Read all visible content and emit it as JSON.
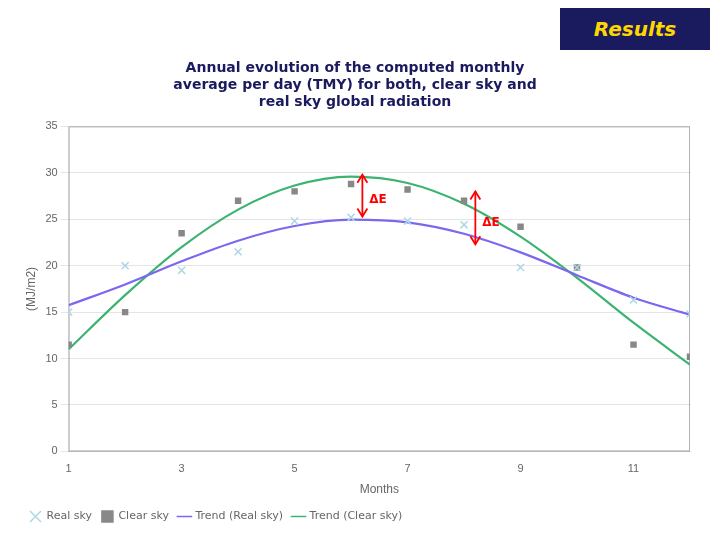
{
  "chart_data": {
    "type": "line",
    "title": "Annual evolution of the computed monthly\naverage per day (TMY) for both, clear sky and\nreal sky global radiation",
    "banner": "Results",
    "xlabel": "Months",
    "ylabel": "(MJ/m2)",
    "x": [
      1,
      2,
      3,
      4,
      5,
      6,
      7,
      8,
      9,
      10,
      11,
      12
    ],
    "series": [
      {
        "name": "Real sky",
        "type": "scatter",
        "marker": "x",
        "color": "#ADD8E6",
        "values": [
          15.0,
          20.0,
          19.5,
          21.5,
          24.8,
          25.2,
          24.8,
          24.4,
          19.8,
          19.8,
          16.3,
          14.8
        ]
      },
      {
        "name": "Clear sky",
        "type": "scatter",
        "marker": "square",
        "color": "#888888",
        "values": [
          11.5,
          15.0,
          23.5,
          27.0,
          28.0,
          28.8,
          28.2,
          27.0,
          24.2,
          19.8,
          11.5,
          10.2
        ]
      },
      {
        "name": "Trend (Real sky)",
        "type": "line",
        "line_style": "solid",
        "color": "#7B68EE",
        "values": [
          15.74,
          17.98,
          20.47,
          22.69,
          24.27,
          24.96,
          24.67,
          23.44,
          21.43,
          18.98,
          16.55,
          14.72
        ]
      },
      {
        "name": "Trend (Clear sky)",
        "type": "line",
        "line_style": "solid",
        "color": "#3CB371",
        "values": [
          11.0,
          16.83,
          22.0,
          26.04,
          28.63,
          29.6,
          28.91,
          26.67,
          23.13,
          18.69,
          13.86,
          9.34
        ]
      }
    ],
    "annotations": [
      {
        "text": "ΔE",
        "x": 6.2,
        "y_top": 29.8,
        "y_bottom": 25.3,
        "color": "red"
      },
      {
        "text": "ΔE",
        "x": 8.2,
        "y_top": 28.0,
        "y_bottom": 22.3,
        "color": "red"
      }
    ],
    "xlim": [
      1,
      12
    ],
    "ylim": [
      0,
      35
    ],
    "xticks": [
      1,
      3,
      5,
      7,
      9,
      11
    ],
    "yticks": [
      0,
      5,
      10,
      15,
      20,
      25,
      30,
      35
    ],
    "grid": "y",
    "legend": "lower left"
  }
}
